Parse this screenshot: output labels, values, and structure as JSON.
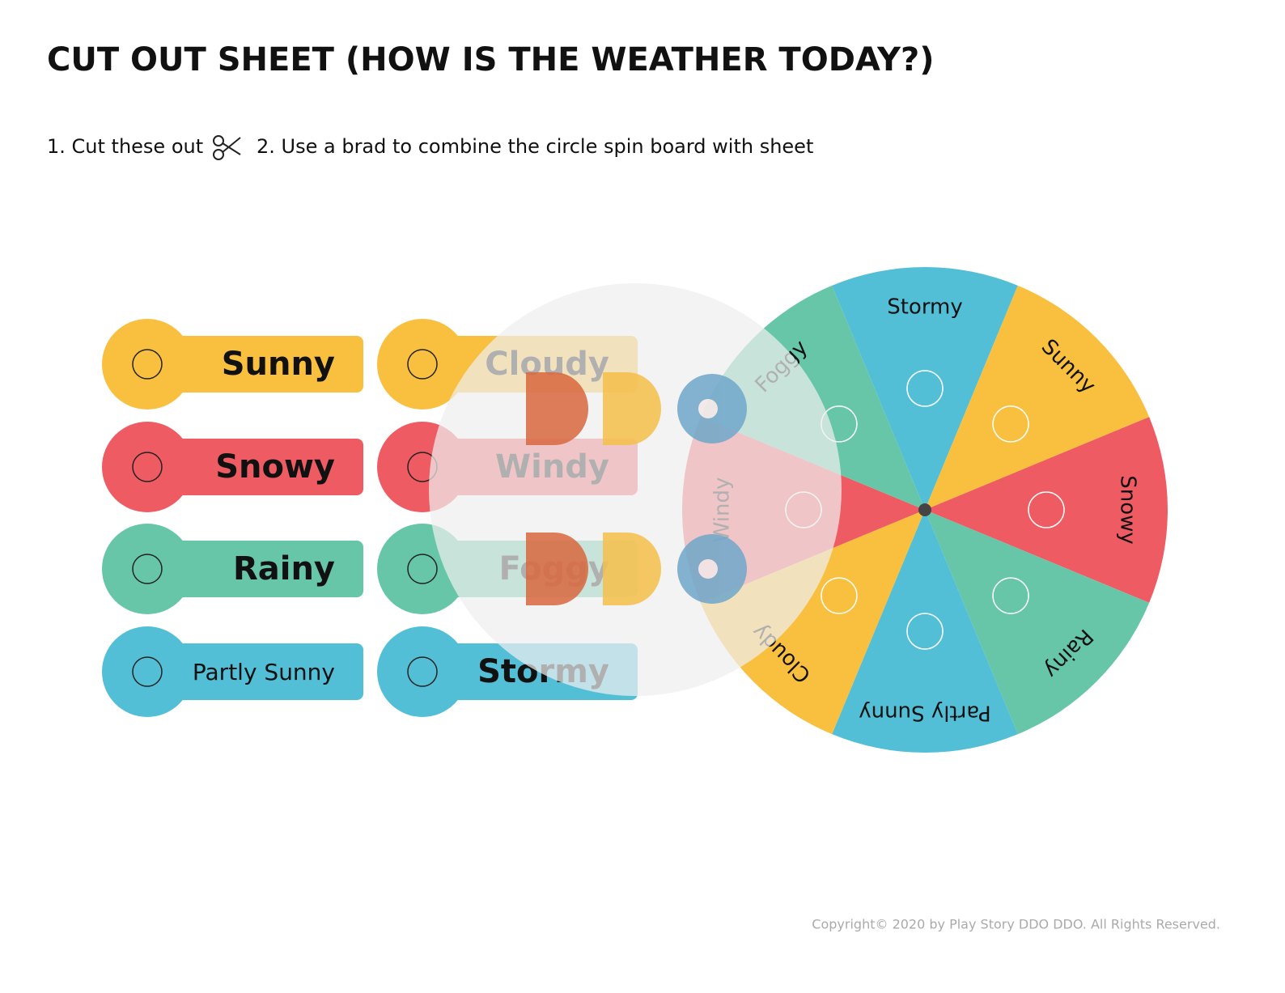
{
  "header": {
    "title": "CUT OUT SHEET (HOW IS THE WEATHER TODAY?)"
  },
  "instructions": [
    "1. Cut these out",
    "2. Use a brad to combine the circle spin board with sheet"
  ],
  "cards": [
    {
      "label": "Sunny",
      "color": "#f9bf3f"
    },
    {
      "label": "Snowy",
      "color": "#ef5b62"
    },
    {
      "label": "Rainy",
      "color": "#66c6a7"
    },
    {
      "label": "Partly Sunny",
      "color": "#52bfd6"
    },
    {
      "label": "Cloudy",
      "color": "#f9bf3f"
    },
    {
      "label": "Windy",
      "color": "#ef5b62"
    },
    {
      "label": "Foggy",
      "color": "#66c6a7"
    },
    {
      "label": "Stormy",
      "color": "#52bfd6"
    }
  ],
  "wheel": {
    "segments": [
      {
        "label": "Stormy",
        "color": "#52bfd6"
      },
      {
        "label": "Sunny",
        "color": "#f9bf3f"
      },
      {
        "label": "Snowy",
        "color": "#ef5b62"
      },
      {
        "label": "Rainy",
        "color": "#66c6a7"
      },
      {
        "label": "Partly Sunny",
        "color": "#52bfd6"
      },
      {
        "label": "Cloudy",
        "color": "#f9bf3f"
      },
      {
        "label": "Windy",
        "color": "#ef5b62"
      },
      {
        "label": "Foggy",
        "color": "#66c6a7"
      }
    ]
  },
  "footer": {
    "copyright": "Copyright© 2020 by Play Story DDO DDO. All Rights Reserved."
  }
}
